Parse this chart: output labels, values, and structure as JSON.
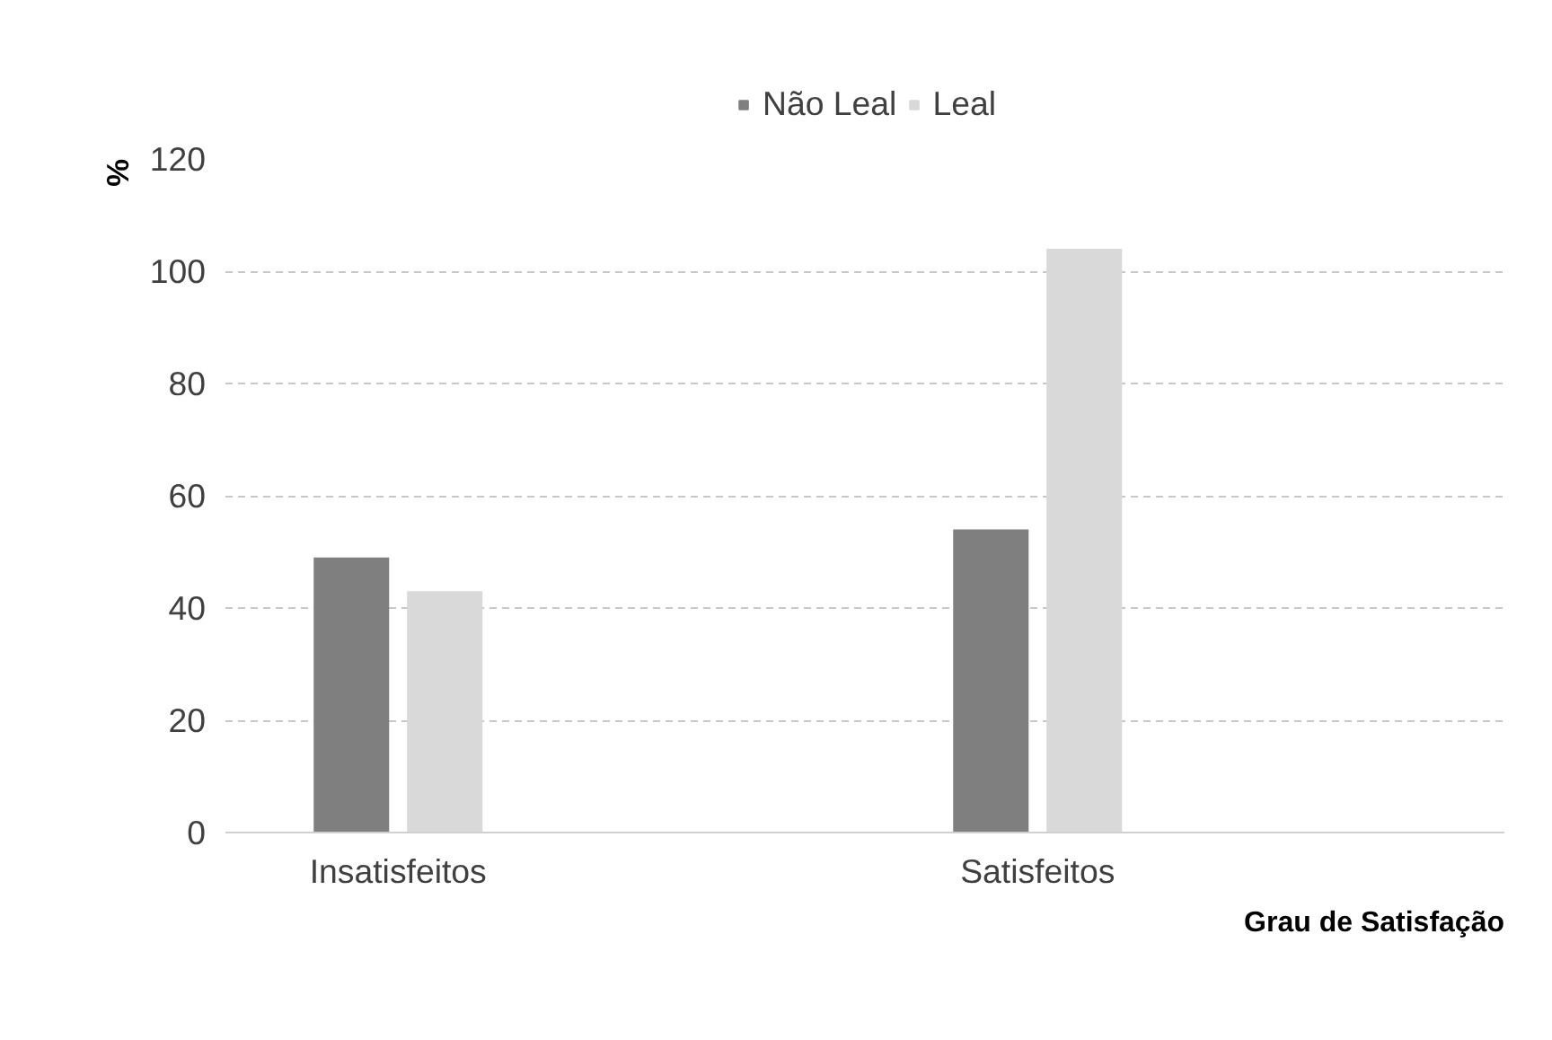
{
  "chart_data": {
    "type": "bar",
    "categories": [
      "Insatisfeitos",
      "Satisfeitos"
    ],
    "series": [
      {
        "name": "Não Leal",
        "color": "#7f7f7f",
        "values": [
          49,
          54
        ]
      },
      {
        "name": "Leal",
        "color": "#d9d9d9",
        "values": [
          43,
          104
        ]
      }
    ],
    "ylabel": "%",
    "xlabel": "Grau de Satisfação",
    "ylim": [
      0,
      120
    ],
    "yticks": [
      0,
      20,
      40,
      60,
      80,
      100,
      120
    ],
    "grid": "y",
    "legend": "top"
  }
}
